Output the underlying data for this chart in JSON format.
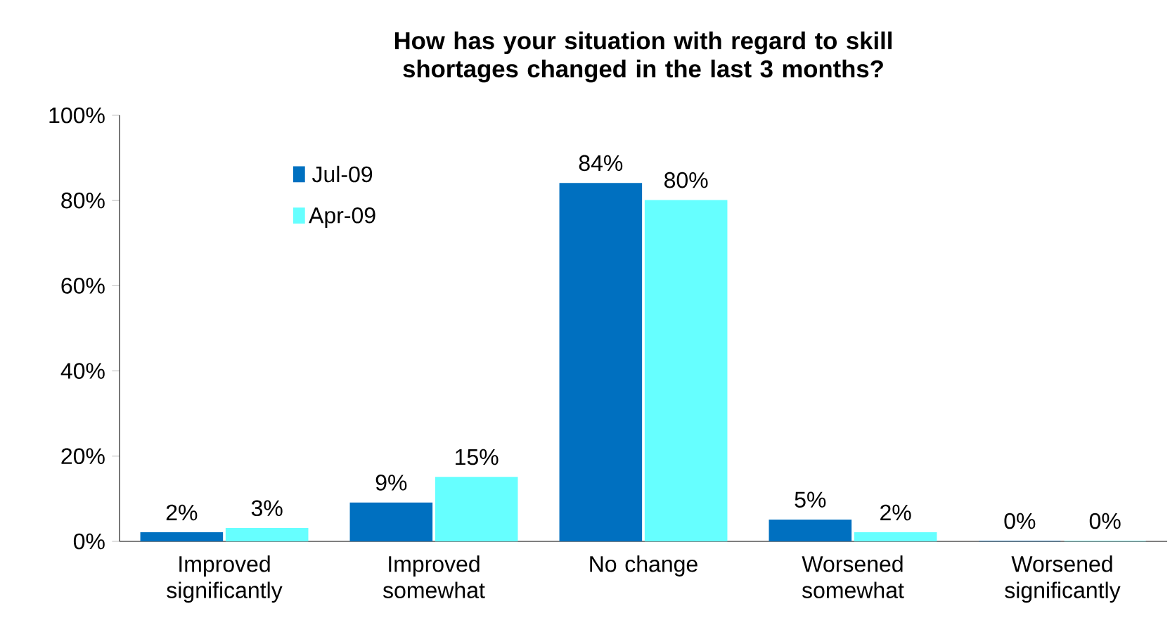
{
  "chart_data": {
    "type": "bar",
    "title": "How has your situation with regard to skill shortages changed in the last 3 months?",
    "categories": [
      "Improved significantly",
      "Improved somewhat",
      "No change",
      "Worsened somewhat",
      "Worsened significantly"
    ],
    "series": [
      {
        "name": "Jul-09",
        "color": "#0070c0",
        "values": [
          2,
          9,
          84,
          5,
          0
        ],
        "value_labels": [
          "2%",
          "9%",
          "84%",
          "5%",
          "0%"
        ]
      },
      {
        "name": "Apr-09",
        "color": "#66ffff",
        "values": [
          3,
          15,
          80,
          2,
          0
        ],
        "value_labels": [
          "3%",
          "15%",
          "80%",
          "2%",
          "0%"
        ]
      }
    ],
    "ylim": [
      0,
      100
    ],
    "yticks": [
      {
        "value": 0,
        "label": "0%"
      },
      {
        "value": 20,
        "label": "20%"
      },
      {
        "value": 40,
        "label": "40%"
      },
      {
        "value": 60,
        "label": "60%"
      },
      {
        "value": 80,
        "label": "80%"
      },
      {
        "value": 100,
        "label": "100%"
      }
    ],
    "grid": false,
    "legend": "top left"
  }
}
